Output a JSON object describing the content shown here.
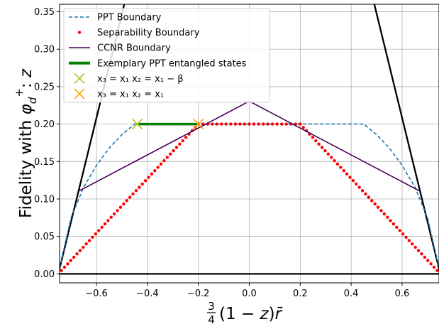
{
  "chart_data": {
    "type": "line",
    "xlabel": "3/4(1 − z) r̄",
    "ylabel": "Fidelity with φ_d^+: z",
    "xlim": [
      -0.745,
      0.745
    ],
    "ylim": [
      -0.012,
      0.36
    ],
    "x_ticks": [
      -0.6,
      -0.4,
      -0.2,
      0.0,
      0.2,
      0.4,
      0.6
    ],
    "x_tick_labels": [
      "−0.6",
      "−0.4",
      "−0.2",
      "0.0",
      "0.2",
      "0.4",
      "0.6"
    ],
    "y_ticks": [
      0.0,
      0.05,
      0.1,
      0.15,
      0.2,
      0.25,
      0.3,
      0.35
    ],
    "y_tick_labels": [
      "0.00",
      "0.05",
      "0.10",
      "0.15",
      "0.20",
      "0.25",
      "0.30",
      "0.35"
    ],
    "grid": true,
    "legend_position": "top-left",
    "series": [
      {
        "name": "PPT Boundary",
        "style": "dashed",
        "color": "#1f77b4",
        "x": [
          -0.75,
          -0.7,
          -0.65,
          -0.6,
          -0.55,
          -0.5,
          -0.45,
          0.45,
          0.5,
          0.55,
          0.6,
          0.65,
          0.7,
          0.75
        ],
        "y": [
          0.0,
          0.075,
          0.116,
          0.145,
          0.168,
          0.186,
          0.2,
          0.2,
          0.186,
          0.168,
          0.145,
          0.116,
          0.075,
          0.0
        ]
      },
      {
        "name": "Separability Boundary",
        "style": "dotted",
        "color": "#ff0000",
        "x": [
          -0.75,
          -0.2,
          0.2,
          0.75
        ],
        "y": [
          0.0,
          0.2,
          0.2,
          0.0
        ]
      },
      {
        "name": "CCNR Boundary",
        "style": "solid",
        "color": "#440154",
        "x": [
          -0.667,
          0.0,
          0.667
        ],
        "y": [
          0.111,
          0.2305,
          0.111
        ]
      },
      {
        "name": "Exemplary PPT entangled states",
        "style": "thick",
        "color": "#008000",
        "x": [
          -0.44,
          -0.2
        ],
        "y": [
          0.2,
          0.2
        ]
      }
    ],
    "extra_lines": [
      {
        "color": "#000000",
        "x": [
          -0.75,
          -0.45
        ],
        "y": [
          0.0,
          0.417
        ]
      },
      {
        "color": "#000000",
        "x": [
          0.75,
          0.45
        ],
        "y": [
          0.0,
          0.417
        ]
      },
      {
        "color": "#000000",
        "x": [
          -0.75,
          0.75
        ],
        "y": [
          0.0,
          0.0
        ]
      }
    ],
    "markers": [
      {
        "name": "x3 = x1    x2 = x1 − β",
        "color": "#bcbd22",
        "x": -0.44,
        "y": 0.2
      },
      {
        "name": "x3 = x1    x2 = x1",
        "color": "#ffa500",
        "x": -0.2,
        "y": 0.2
      }
    ],
    "legend": [
      {
        "label": "PPT Boundary",
        "kind": "dashed",
        "color": "#1f77b4"
      },
      {
        "label": "Separability Boundary",
        "kind": "dots",
        "color": "#ff0000"
      },
      {
        "label": "CCNR Boundary",
        "kind": "line",
        "color": "#440154"
      },
      {
        "label": "Exemplary PPT entangled states",
        "kind": "thick",
        "color": "#008000"
      },
      {
        "label": " x₃ = x₁      x₂ = x₁ − β",
        "kind": "x",
        "color": "#bcbd22"
      },
      {
        "label": " x₃ = x₁      x₂ = x₁",
        "kind": "x",
        "color": "#ffa500"
      }
    ]
  }
}
